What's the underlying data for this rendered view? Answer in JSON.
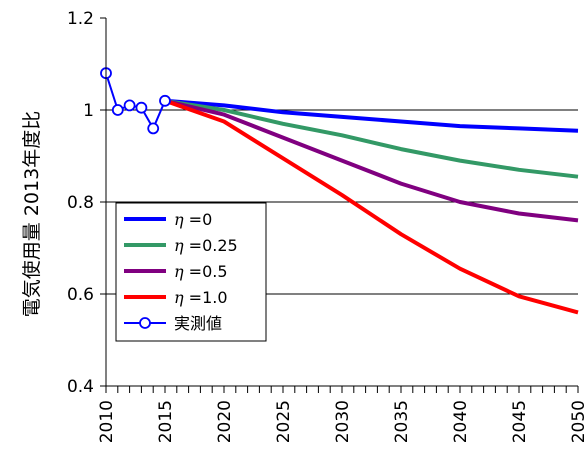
{
  "chart_data": {
    "type": "line",
    "ylabel": "電気使用量 2013年度比",
    "xlim": [
      2010,
      2050
    ],
    "ylim": [
      0.4,
      1.2
    ],
    "yticks": [
      0.4,
      0.6,
      0.8,
      1,
      1.2
    ],
    "ytick_labels": [
      "0.4",
      "0.6",
      "0.8",
      "1",
      "1.2"
    ],
    "xticks": [
      2010,
      2015,
      2020,
      2025,
      2030,
      2035,
      2040,
      2045,
      2050
    ],
    "xtick_labels": [
      "2010",
      "2015",
      "2020",
      "2025",
      "2030",
      "2035",
      "2040",
      "2045",
      "2050"
    ],
    "grid": "horizontal",
    "legend_position": "bottom-left",
    "series": [
      {
        "name": "η =0",
        "greek": "η",
        "suffix": " =0",
        "color": "#0000ff",
        "x": [
          2015,
          2020,
          2025,
          2030,
          2035,
          2040,
          2045,
          2050
        ],
        "y": [
          1.02,
          1.01,
          0.995,
          0.985,
          0.975,
          0.965,
          0.96,
          0.955
        ]
      },
      {
        "name": "η =0.25",
        "greek": "η",
        "suffix": " =0.25",
        "color": "#339966",
        "x": [
          2015,
          2020,
          2025,
          2030,
          2035,
          2040,
          2045,
          2050
        ],
        "y": [
          1.02,
          1.0,
          0.97,
          0.945,
          0.915,
          0.89,
          0.87,
          0.855
        ]
      },
      {
        "name": "η =0.5",
        "greek": "η",
        "suffix": " =0.5",
        "color": "#800080",
        "x": [
          2015,
          2020,
          2025,
          2030,
          2035,
          2040,
          2045,
          2050
        ],
        "y": [
          1.02,
          0.99,
          0.94,
          0.89,
          0.84,
          0.8,
          0.775,
          0.76
        ]
      },
      {
        "name": "η =1.0",
        "greek": "η",
        "suffix": " =1.0",
        "color": "#ff0000",
        "x": [
          2015,
          2020,
          2025,
          2030,
          2035,
          2040,
          2045,
          2050
        ],
        "y": [
          1.02,
          0.975,
          0.895,
          0.815,
          0.73,
          0.655,
          0.595,
          0.56
        ]
      },
      {
        "name": "実測値",
        "greek": "",
        "suffix": "実測値",
        "color": "#0000ff",
        "marker": "circle-open",
        "x": [
          2010,
          2011,
          2012,
          2013,
          2014,
          2015
        ],
        "y": [
          1.08,
          1.0,
          1.01,
          1.005,
          0.96,
          1.02
        ]
      }
    ]
  }
}
